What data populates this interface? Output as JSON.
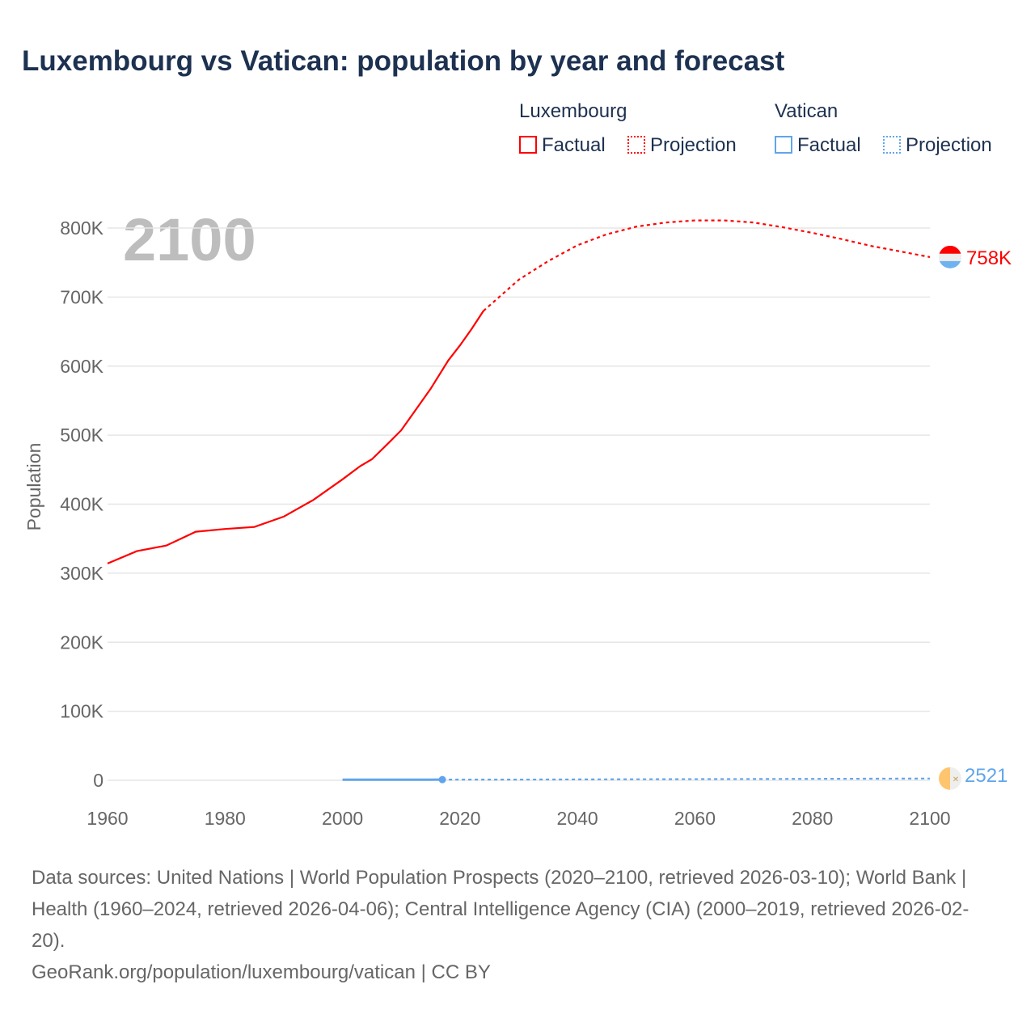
{
  "title": "Luxembourg vs Vatican: population by year and forecast",
  "legend": {
    "groups": [
      {
        "name": "Luxembourg",
        "factual": "Factual",
        "projection": "Projection",
        "color": "#ff0000"
      },
      {
        "name": "Vatican",
        "factual": "Factual",
        "projection": "Projection",
        "color": "#60a5ec"
      }
    ]
  },
  "year_label": "2100",
  "footer": {
    "sources": "Data sources: United Nations | World Population Prospects (2020–2100, retrieved 2026-03-10); World Bank | Health (1960–2024, retrieved 2026-04-06); Central Intelligence Agency (CIA) (2000–2019, retrieved 2026-02-20).",
    "credit": "GeoRank.org/population/luxembourg/vatican | CC BY"
  },
  "chart_data": {
    "type": "line",
    "title": "Luxembourg vs Vatican: population by year and forecast",
    "xlabel": "",
    "ylabel": "Population",
    "xlim": [
      1960,
      2100
    ],
    "ylim": [
      0,
      800000
    ],
    "xticks": [
      1960,
      1980,
      2000,
      2020,
      2040,
      2060,
      2080,
      2100
    ],
    "xtick_labels": [
      "1960",
      "1980",
      "2000",
      "2020",
      "2040",
      "2060",
      "2080",
      "2100"
    ],
    "yticks": [
      0,
      100000,
      200000,
      300000,
      400000,
      500000,
      600000,
      700000,
      800000
    ],
    "ytick_labels": [
      "0",
      "100K",
      "200K",
      "300K",
      "400K",
      "500K",
      "600K",
      "700K",
      "800K"
    ],
    "grid": true,
    "series": [
      {
        "name": "Luxembourg Factual",
        "color": "#ff0000",
        "dash": false,
        "x": [
          1960,
          1965,
          1970,
          1973,
          1975,
          1980,
          1985,
          1988,
          1990,
          1995,
          2000,
          2003,
          2005,
          2008,
          2010,
          2013,
          2015,
          2018,
          2020,
          2022,
          2024
        ],
        "y": [
          314000,
          332000,
          340000,
          352000,
          360000,
          364000,
          367000,
          376000,
          382000,
          406000,
          436000,
          455000,
          465000,
          490000,
          507000,
          543000,
          567000,
          608000,
          630000,
          654000,
          680000
        ]
      },
      {
        "name": "Luxembourg Projection",
        "color": "#ff0000",
        "dash": true,
        "x": [
          2024,
          2030,
          2035,
          2040,
          2045,
          2050,
          2055,
          2060,
          2065,
          2070,
          2075,
          2080,
          2085,
          2090,
          2095,
          2100
        ],
        "y": [
          680000,
          725000,
          752000,
          775000,
          791000,
          802000,
          808000,
          811000,
          811000,
          808000,
          801000,
          793000,
          784000,
          774000,
          766000,
          758000
        ]
      },
      {
        "name": "Vatican Factual",
        "color": "#60a5ec",
        "dash": false,
        "x": [
          2000,
          2005,
          2010,
          2015,
          2017
        ],
        "y": [
          880,
          900,
          830,
          840,
          1000
        ]
      },
      {
        "name": "Vatican Projection",
        "color": "#60a5ec",
        "dash": true,
        "x": [
          2017,
          2030,
          2050,
          2070,
          2090,
          2100
        ],
        "y": [
          1000,
          1100,
          1500,
          1900,
          2300,
          2521
        ]
      }
    ],
    "end_labels": [
      {
        "series": "Luxembourg",
        "text": "758K",
        "color": "#ff0000"
      },
      {
        "series": "Vatican",
        "text": "2521",
        "color": "#60a5ec"
      }
    ]
  }
}
